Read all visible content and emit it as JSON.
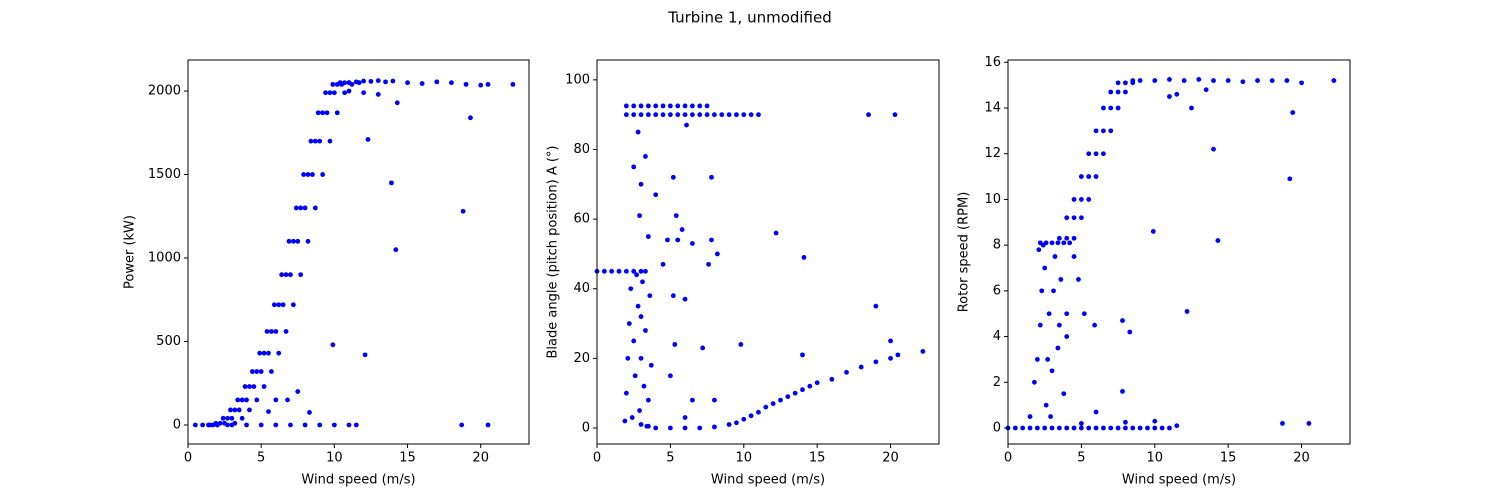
{
  "title": "Turbine 1, unmodified",
  "chart_data": [
    {
      "type": "scatter",
      "xlabel": "Wind speed (m/s)",
      "ylabel": "Power (kW)",
      "color": "#0000ff",
      "xlim": [
        0,
        23.3
      ],
      "ylim": [
        -114,
        2186
      ],
      "xticks": [
        0,
        5,
        10,
        15,
        20
      ],
      "yticks": [
        0,
        500,
        1000,
        1500,
        2000
      ],
      "x": [
        0.5,
        1,
        1.5,
        2,
        3,
        4,
        5,
        6,
        7,
        8,
        9,
        10,
        11,
        11.5,
        18.7,
        20.5,
        2,
        2.5,
        3,
        3.5,
        4,
        4.5,
        5,
        5.5,
        6,
        6.5,
        7,
        7.5,
        8,
        8.5,
        9,
        9.5,
        10,
        10.5,
        11,
        1.4,
        1.9,
        2.4,
        2.9,
        3.4,
        3.9,
        4.4,
        4.9,
        5.4,
        5.9,
        6.4,
        6.9,
        7.4,
        7.9,
        8.4,
        8.9,
        9.4,
        9.9,
        10.4,
        1.7,
        2.2,
        2.7,
        3.2,
        3.7,
        4.2,
        4.7,
        5.2,
        5.7,
        6.2,
        6.7,
        7.2,
        7.7,
        8.2,
        8.7,
        9.2,
        9.7,
        10.2,
        10.7,
        2.7,
        3.2,
        3.7,
        4.2,
        4.7,
        5.2,
        5.7,
        6.2,
        6.7,
        7.2,
        7.7,
        8.2,
        8.7,
        9.2,
        9.7,
        10.2,
        10.7,
        11.2,
        11.7,
        11,
        11.5,
        12,
        12.5,
        13,
        13.5,
        14,
        15,
        16,
        17,
        18,
        19,
        20,
        20.5,
        22.2,
        11,
        12,
        13,
        14.3,
        12.3,
        13.9,
        14.2,
        18.8,
        19.3,
        9.9,
        12.1,
        8.3,
        7.5,
        6.8,
        5.5,
        6
      ],
      "values": [
        0,
        0,
        0,
        0,
        0,
        0,
        0,
        0,
        0,
        0,
        0,
        0,
        0,
        0,
        0,
        0,
        0,
        10,
        40,
        90,
        150,
        230,
        320,
        430,
        560,
        720,
        900,
        1100,
        1300,
        1500,
        1700,
        1870,
        1990,
        2040,
        2050,
        0,
        10,
        40,
        90,
        150,
        230,
        320,
        430,
        560,
        720,
        900,
        1100,
        1300,
        1500,
        1700,
        1870,
        1990,
        2040,
        2050,
        0,
        10,
        40,
        90,
        150,
        230,
        320,
        430,
        560,
        720,
        900,
        1100,
        1300,
        1500,
        1700,
        1870,
        1990,
        2040,
        2050,
        0,
        10,
        40,
        90,
        150,
        230,
        320,
        430,
        560,
        720,
        900,
        1100,
        1300,
        1500,
        1700,
        1870,
        1990,
        2040,
        2050,
        2050,
        2055,
        2060,
        2058,
        2062,
        2055,
        2060,
        2050,
        2045,
        2055,
        2050,
        2040,
        2035,
        2040,
        2040,
        2000,
        1990,
        1980,
        1930,
        1710,
        1450,
        1050,
        1280,
        1840,
        480,
        420,
        75,
        200,
        150,
        80,
        150
      ]
    },
    {
      "type": "scatter",
      "xlabel": "Wind speed (m/s)",
      "ylabel": "Blade angle (pitch position) A (°)",
      "color": "#0000ff",
      "xlim": [
        0,
        23.3
      ],
      "ylim": [
        -4.6,
        105.7
      ],
      "xticks": [
        0,
        5,
        10,
        15,
        20
      ],
      "yticks": [
        0,
        20,
        40,
        60,
        80,
        100
      ],
      "x": [
        2,
        2.5,
        3,
        3.5,
        4,
        4.5,
        5,
        5.5,
        6,
        6.5,
        7,
        7.5,
        8,
        8.5,
        9,
        9.5,
        10,
        10.5,
        11,
        2,
        2.5,
        3,
        3.5,
        4,
        4.5,
        5,
        5.5,
        6,
        6.5,
        7,
        7.5,
        0,
        0.5,
        1,
        1.5,
        2,
        2.5,
        3,
        3.3,
        1.9,
        2,
        2.2,
        2.3,
        2.5,
        2.6,
        2.8,
        2.9,
        3,
        3.1,
        3.2,
        3.3,
        3.5,
        3.6,
        3.7,
        2.4,
        2.7,
        3.4,
        2.1,
        3,
        3,
        3.5,
        4,
        5,
        6,
        7,
        8,
        9,
        9.5,
        10,
        10.5,
        11,
        11.5,
        12,
        12.5,
        13,
        13.5,
        14,
        14.5,
        15,
        16,
        17,
        18,
        19,
        20,
        20.5,
        22.2,
        2.5,
        2.8,
        3,
        3.3,
        4,
        5.2,
        6.1,
        7.8,
        2.9,
        5.4,
        5.8,
        5.5,
        6.5,
        4.8,
        3.5,
        7.8,
        8.2,
        7.6,
        12.2,
        14.1,
        18.5,
        20.3,
        19,
        20,
        14,
        9.8,
        5.3,
        7.2,
        6,
        4.5,
        5.2,
        6.5,
        8,
        5,
        6
      ],
      "values": [
        90,
        90,
        90,
        90,
        90,
        90,
        90,
        90,
        90,
        90,
        90,
        90,
        90,
        90,
        90,
        90,
        90,
        90,
        90,
        92.5,
        92.5,
        92.5,
        92.5,
        92.5,
        92.5,
        92.5,
        92.5,
        92.5,
        92.5,
        92.5,
        92.5,
        45,
        45,
        45,
        45,
        45,
        45,
        45,
        45,
        2,
        10,
        30,
        40,
        25,
        15,
        35,
        5,
        20,
        42,
        12,
        28,
        8,
        38,
        18,
        3,
        44,
        0.5,
        20,
        32,
        1,
        0.5,
        0,
        0,
        0,
        0,
        0.3,
        1,
        1.5,
        2.5,
        3.5,
        4.5,
        6,
        7,
        8,
        9,
        10,
        11,
        12,
        13,
        14,
        16,
        17.5,
        19,
        20,
        21,
        22,
        75,
        85,
        70,
        78,
        67,
        72,
        87,
        72,
        61,
        61,
        57,
        54,
        53,
        54,
        55,
        54,
        50,
        47,
        56,
        49,
        90,
        90,
        35,
        25,
        21,
        24,
        24,
        23,
        37,
        47,
        38,
        8,
        8,
        15,
        3
      ]
    },
    {
      "type": "scatter",
      "xlabel": "Wind speed (m/s)",
      "ylabel": "Rotor speed (RPM)",
      "color": "#0000ff",
      "xlim": [
        0,
        23.3
      ],
      "ylim": [
        -0.7,
        16.1
      ],
      "xticks": [
        0,
        5,
        10,
        15,
        20
      ],
      "yticks": [
        0,
        2,
        4,
        6,
        8,
        10,
        12,
        14,
        16
      ],
      "x": [
        0,
        0.5,
        1,
        1.5,
        2,
        2.5,
        3,
        3.5,
        4,
        4.5,
        5,
        5.5,
        6,
        6.5,
        7,
        7.5,
        8,
        8.5,
        9,
        9.5,
        10,
        10.5,
        11,
        11.5,
        18.7,
        20.5,
        5,
        8,
        10,
        6,
        1.5,
        1.8,
        2,
        2.2,
        2.3,
        2.5,
        2.6,
        2.8,
        3,
        3.2,
        3.4,
        3.6,
        3.8,
        4,
        2.4,
        2.9,
        3.1,
        2.7,
        2.1,
        3.5,
        2.2,
        2.6,
        3,
        3.4,
        3.8,
        4.2,
        4,
        4.5,
        5,
        5.5,
        6,
        6.5,
        7,
        7.5,
        8,
        3.5,
        4,
        4.5,
        5,
        5.5,
        6,
        6.5,
        7,
        7.5,
        4.5,
        5,
        5.5,
        6,
        6.5,
        7,
        7.5,
        8,
        8.5,
        8.5,
        9,
        10,
        11,
        12,
        13,
        14,
        15,
        16,
        17,
        18,
        19,
        20,
        22.2,
        11.5,
        12.5,
        13.5,
        11,
        14,
        14.3,
        19.4,
        19.2,
        12.2,
        9.9,
        7.8,
        8.3,
        7.8,
        5.9,
        4.5,
        4.8,
        5.2,
        4
      ],
      "values": [
        0,
        0,
        0,
        0,
        0,
        0,
        0,
        0,
        0,
        0,
        0,
        0,
        0,
        0,
        0,
        0,
        0,
        0,
        0,
        0,
        0,
        0,
        0,
        0.1,
        0.2,
        0.2,
        0.2,
        0.25,
        0.3,
        0.7,
        0.5,
        2,
        3,
        4.5,
        6,
        7,
        1,
        5,
        2.5,
        7.5,
        3.5,
        6.5,
        1.5,
        5,
        8,
        0.5,
        6,
        3,
        7.8,
        4.5,
        8.1,
        8.1,
        8.1,
        8.1,
        8.1,
        8.1,
        8.3,
        9.2,
        10,
        11,
        12,
        13,
        14,
        14.7,
        15.1,
        8.3,
        9.2,
        10,
        11,
        12,
        13,
        14,
        14.7,
        15.1,
        8.3,
        9.2,
        10,
        11,
        12,
        13,
        14,
        14.7,
        15.1,
        15.2,
        15.2,
        15.2,
        15.25,
        15.2,
        15.25,
        15.2,
        15.2,
        15.15,
        15.2,
        15.2,
        15.2,
        15.1,
        15.2,
        14.6,
        14,
        14.8,
        14.5,
        12.2,
        8.2,
        13.8,
        10.9,
        5.1,
        8.6,
        4.7,
        4.2,
        1.6,
        4.5,
        7.5,
        6.5,
        5,
        4
      ]
    }
  ]
}
